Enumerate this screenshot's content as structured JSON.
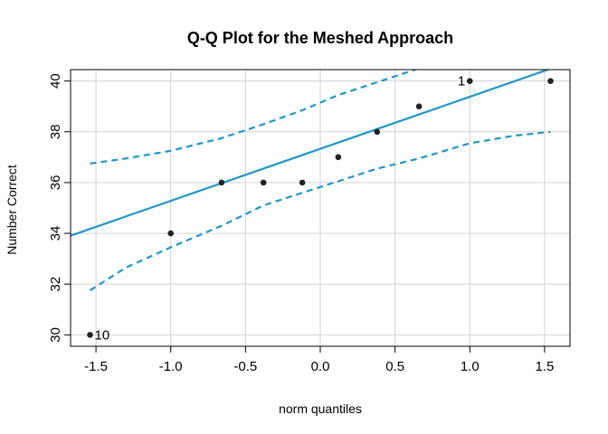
{
  "chart_data": {
    "type": "scatter",
    "title": "Q-Q Plot for the Meshed Approach",
    "xlabel": "norm quantiles",
    "ylabel": "Number Correct",
    "xlim": [
      -1.67,
      1.67
    ],
    "ylim": [
      29.55,
      40.45
    ],
    "xticks": [
      -1.5,
      -1.0,
      -0.5,
      0.0,
      0.5,
      1.0,
      1.5
    ],
    "xtick_labels": [
      "-1.5",
      "-1.0",
      "-0.5",
      "0.0",
      "0.5",
      "1.0",
      "1.5"
    ],
    "yticks": [
      30,
      32,
      34,
      36,
      38,
      40
    ],
    "ytick_labels": [
      "30",
      "32",
      "34",
      "36",
      "38",
      "40"
    ],
    "grid": true,
    "points": [
      {
        "x": -1.54,
        "y": 30
      },
      {
        "x": -1.0,
        "y": 34
      },
      {
        "x": -0.66,
        "y": 36
      },
      {
        "x": -0.38,
        "y": 36
      },
      {
        "x": -0.12,
        "y": 36
      },
      {
        "x": 0.12,
        "y": 37
      },
      {
        "x": 0.38,
        "y": 38
      },
      {
        "x": 0.66,
        "y": 39
      },
      {
        "x": 1.0,
        "y": 40
      },
      {
        "x": 1.54,
        "y": 40
      }
    ],
    "point_labels": [
      {
        "text": "1",
        "x": 1.0,
        "y": 40
      },
      {
        "text": "10",
        "x": -1.54,
        "y": 30
      }
    ],
    "reference_line": {
      "intercept": 37.33,
      "slope": 2.05
    },
    "confidence_band": {
      "x": [
        -1.54,
        -1.3,
        -1.0,
        -0.66,
        -0.38,
        -0.12,
        0.12,
        0.38,
        0.66,
        1.0,
        1.3,
        1.54
      ],
      "upper": [
        36.75,
        36.95,
        37.25,
        37.75,
        38.3,
        38.85,
        39.45,
        39.95,
        40.5,
        41.2,
        41.9,
        42.5
      ],
      "lower": [
        31.75,
        32.65,
        33.45,
        34.3,
        35.1,
        35.6,
        36.05,
        36.55,
        36.95,
        37.55,
        37.85,
        38.0
      ]
    },
    "colors": {
      "line": "#1f97c8",
      "points": "#222222"
    }
  }
}
